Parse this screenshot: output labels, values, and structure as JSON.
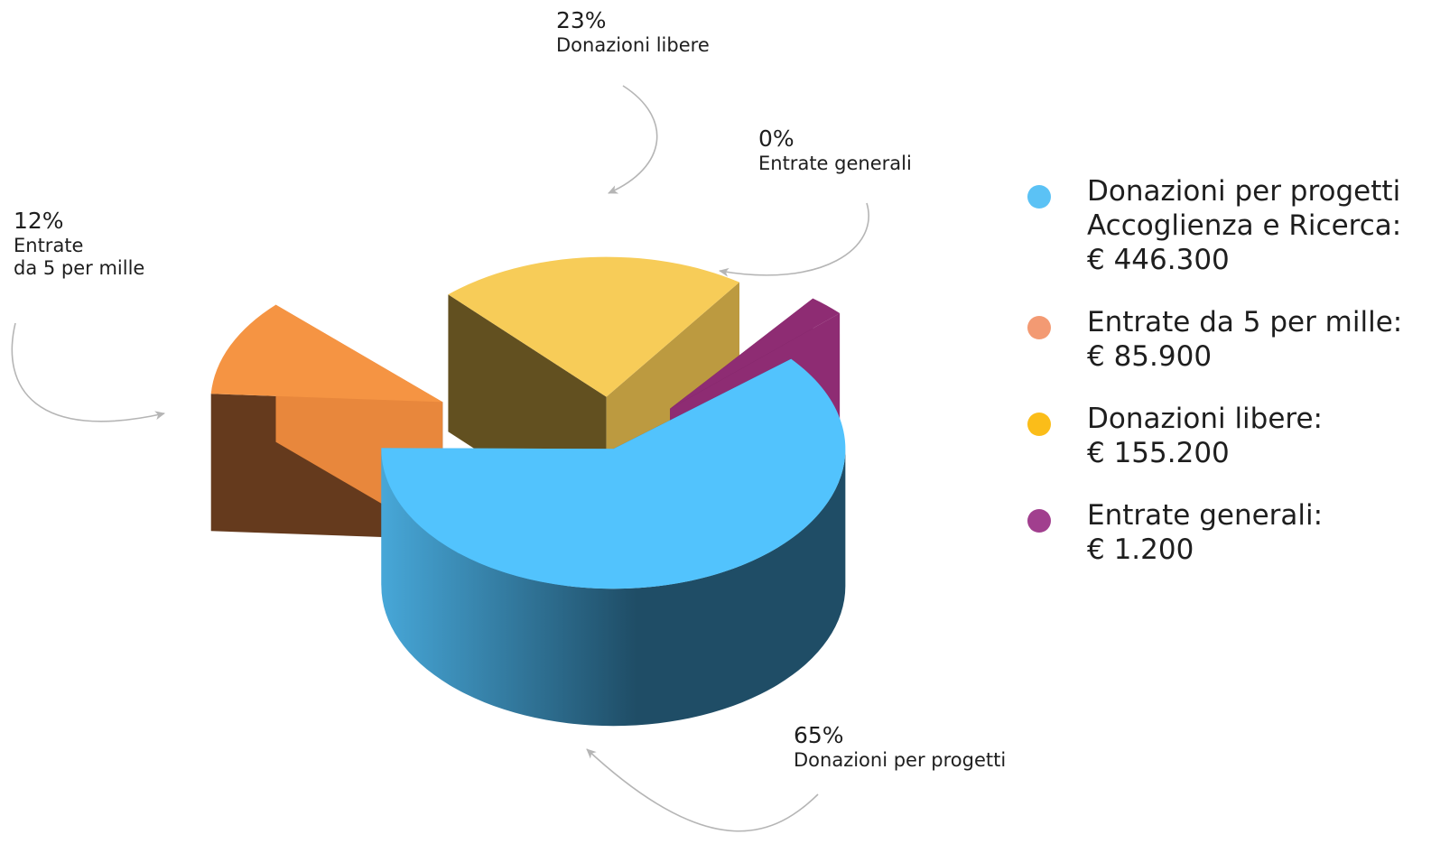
{
  "chart_data": {
    "type": "pie",
    "categories": [
      "Donazioni per progetti",
      "Entrate da 5 per mille",
      "Donazioni libere",
      "Entrate generali"
    ],
    "values": [
      65,
      12,
      23,
      0
    ],
    "unit": "%",
    "slices": [
      {
        "key": "progetti",
        "percent": 65,
        "pct_label": "65%",
        "name_lines": [
          "Donazioni per progetti"
        ],
        "legend_lines": [
          "Donazioni per progetti",
          "Accoglienza e Ricerca:",
          "€ 446.300"
        ],
        "amount": 446300,
        "color_top": "#52c3fd",
        "color_side_light": "#47a7d8",
        "color_side_dark": "#1f4d66",
        "legend_color": "#5bc2f5"
      },
      {
        "key": "cinque",
        "percent": 12,
        "pct_label": "12%",
        "name_lines": [
          "Entrate",
          "da 5 per mille"
        ],
        "legend_lines": [
          "Entrate da 5 per mille:",
          "€ 85.900"
        ],
        "amount": 85900,
        "color_top": "#f59443",
        "color_side_light": "#e8873c",
        "color_side_dark": "#653a1d",
        "legend_color": "#f39a73"
      },
      {
        "key": "libere",
        "percent": 23,
        "pct_label": "23%",
        "name_lines": [
          "Donazioni libere"
        ],
        "legend_lines": [
          "Donazioni libere:",
          "€ 155.200"
        ],
        "amount": 155200,
        "color_top": "#f7cc58",
        "color_side_light": "#bc9a40",
        "color_side_dark": "#625020",
        "legend_color": "#fbbd19"
      },
      {
        "key": "generali",
        "percent": 0,
        "pct_label": "0%",
        "name_lines": [
          "Entrate generali"
        ],
        "legend_lines": [
          "Entrate generali:",
          "€ 1.200"
        ],
        "amount": 1200,
        "color_top": "#8e2c73",
        "color_side_light": "#8e2c73",
        "color_side_dark": "#6c1f57",
        "legend_color": "#a13f8e"
      }
    ],
    "legend_position": "right",
    "arrow_color": "#b5b5b5"
  }
}
